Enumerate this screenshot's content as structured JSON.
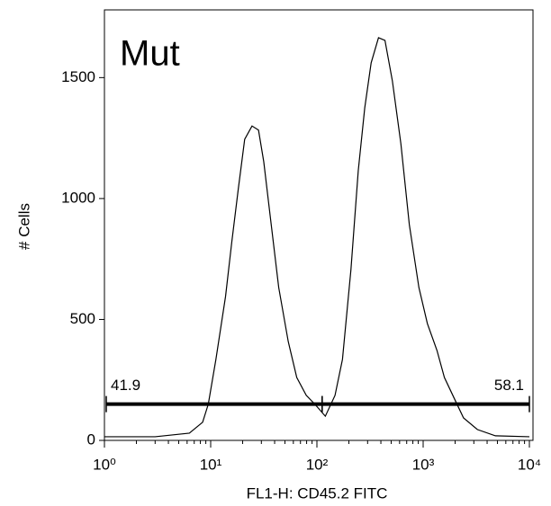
{
  "chart_data": {
    "type": "line",
    "title": "Mut",
    "x_label": "FL1-H: CD45.2 FITC",
    "y_label": "# Cells",
    "xscale": "log",
    "color": "#000000",
    "xlim": [
      1,
      10000
    ],
    "ylim": [
      0,
      1780
    ],
    "xticks": [
      {
        "value": 1,
        "label": "10⁰"
      },
      {
        "value": 10,
        "label": "10¹"
      },
      {
        "value": 100,
        "label": "10²"
      },
      {
        "value": 1000,
        "label": "10³"
      },
      {
        "value": 10000,
        "label": "10⁴"
      }
    ],
    "yticks": [
      0,
      500,
      1000,
      1500
    ],
    "x": [
      1,
      3,
      6.3,
      8.4,
      9.5,
      11.2,
      13.8,
      15.8,
      18.2,
      20.9,
      24.5,
      28.2,
      31.6,
      36.3,
      43.7,
      53.7,
      64.6,
      79.4,
      95.5,
      120,
      148,
      174,
      209,
      245,
      282,
      324,
      380,
      437,
      513,
      617,
      741,
      912,
      1096,
      1349,
      1585,
      1995,
      2399,
      3236,
      4786,
      10000
    ],
    "values": [
      15,
      15,
      30,
      75,
      150,
      335,
      595,
      820,
      1040,
      1245,
      1300,
      1283,
      1152,
      929,
      632,
      409,
      260,
      186,
      150,
      100,
      186,
      335,
      706,
      1115,
      1375,
      1561,
      1665,
      1654,
      1487,
      1227,
      892,
      632,
      483,
      372,
      260,
      167,
      93,
      45,
      19,
      15
    ],
    "gates": [
      {
        "x": [
          1.04,
          112
        ],
        "y": 150,
        "value": 41.9
      },
      {
        "x": [
          112,
          10000
        ],
        "y": 150,
        "value": 58.1
      }
    ]
  }
}
